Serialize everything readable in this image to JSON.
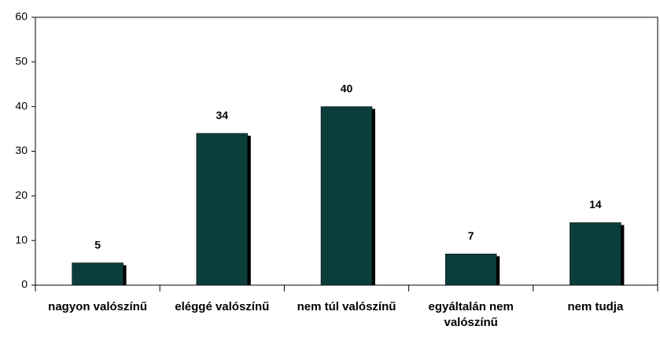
{
  "chart_data": {
    "type": "bar",
    "categories": [
      "nagyon valószínű",
      "eléggé valószínű",
      "nem túl valószínű",
      "egyáltalán nem valószínű",
      "nem tudja"
    ],
    "values": [
      5,
      34,
      40,
      7,
      14
    ],
    "color": "#0b3d3a",
    "ylim": [
      0,
      60
    ],
    "yticks": [
      0,
      10,
      20,
      30,
      40,
      50,
      60
    ],
    "grid": false
  }
}
